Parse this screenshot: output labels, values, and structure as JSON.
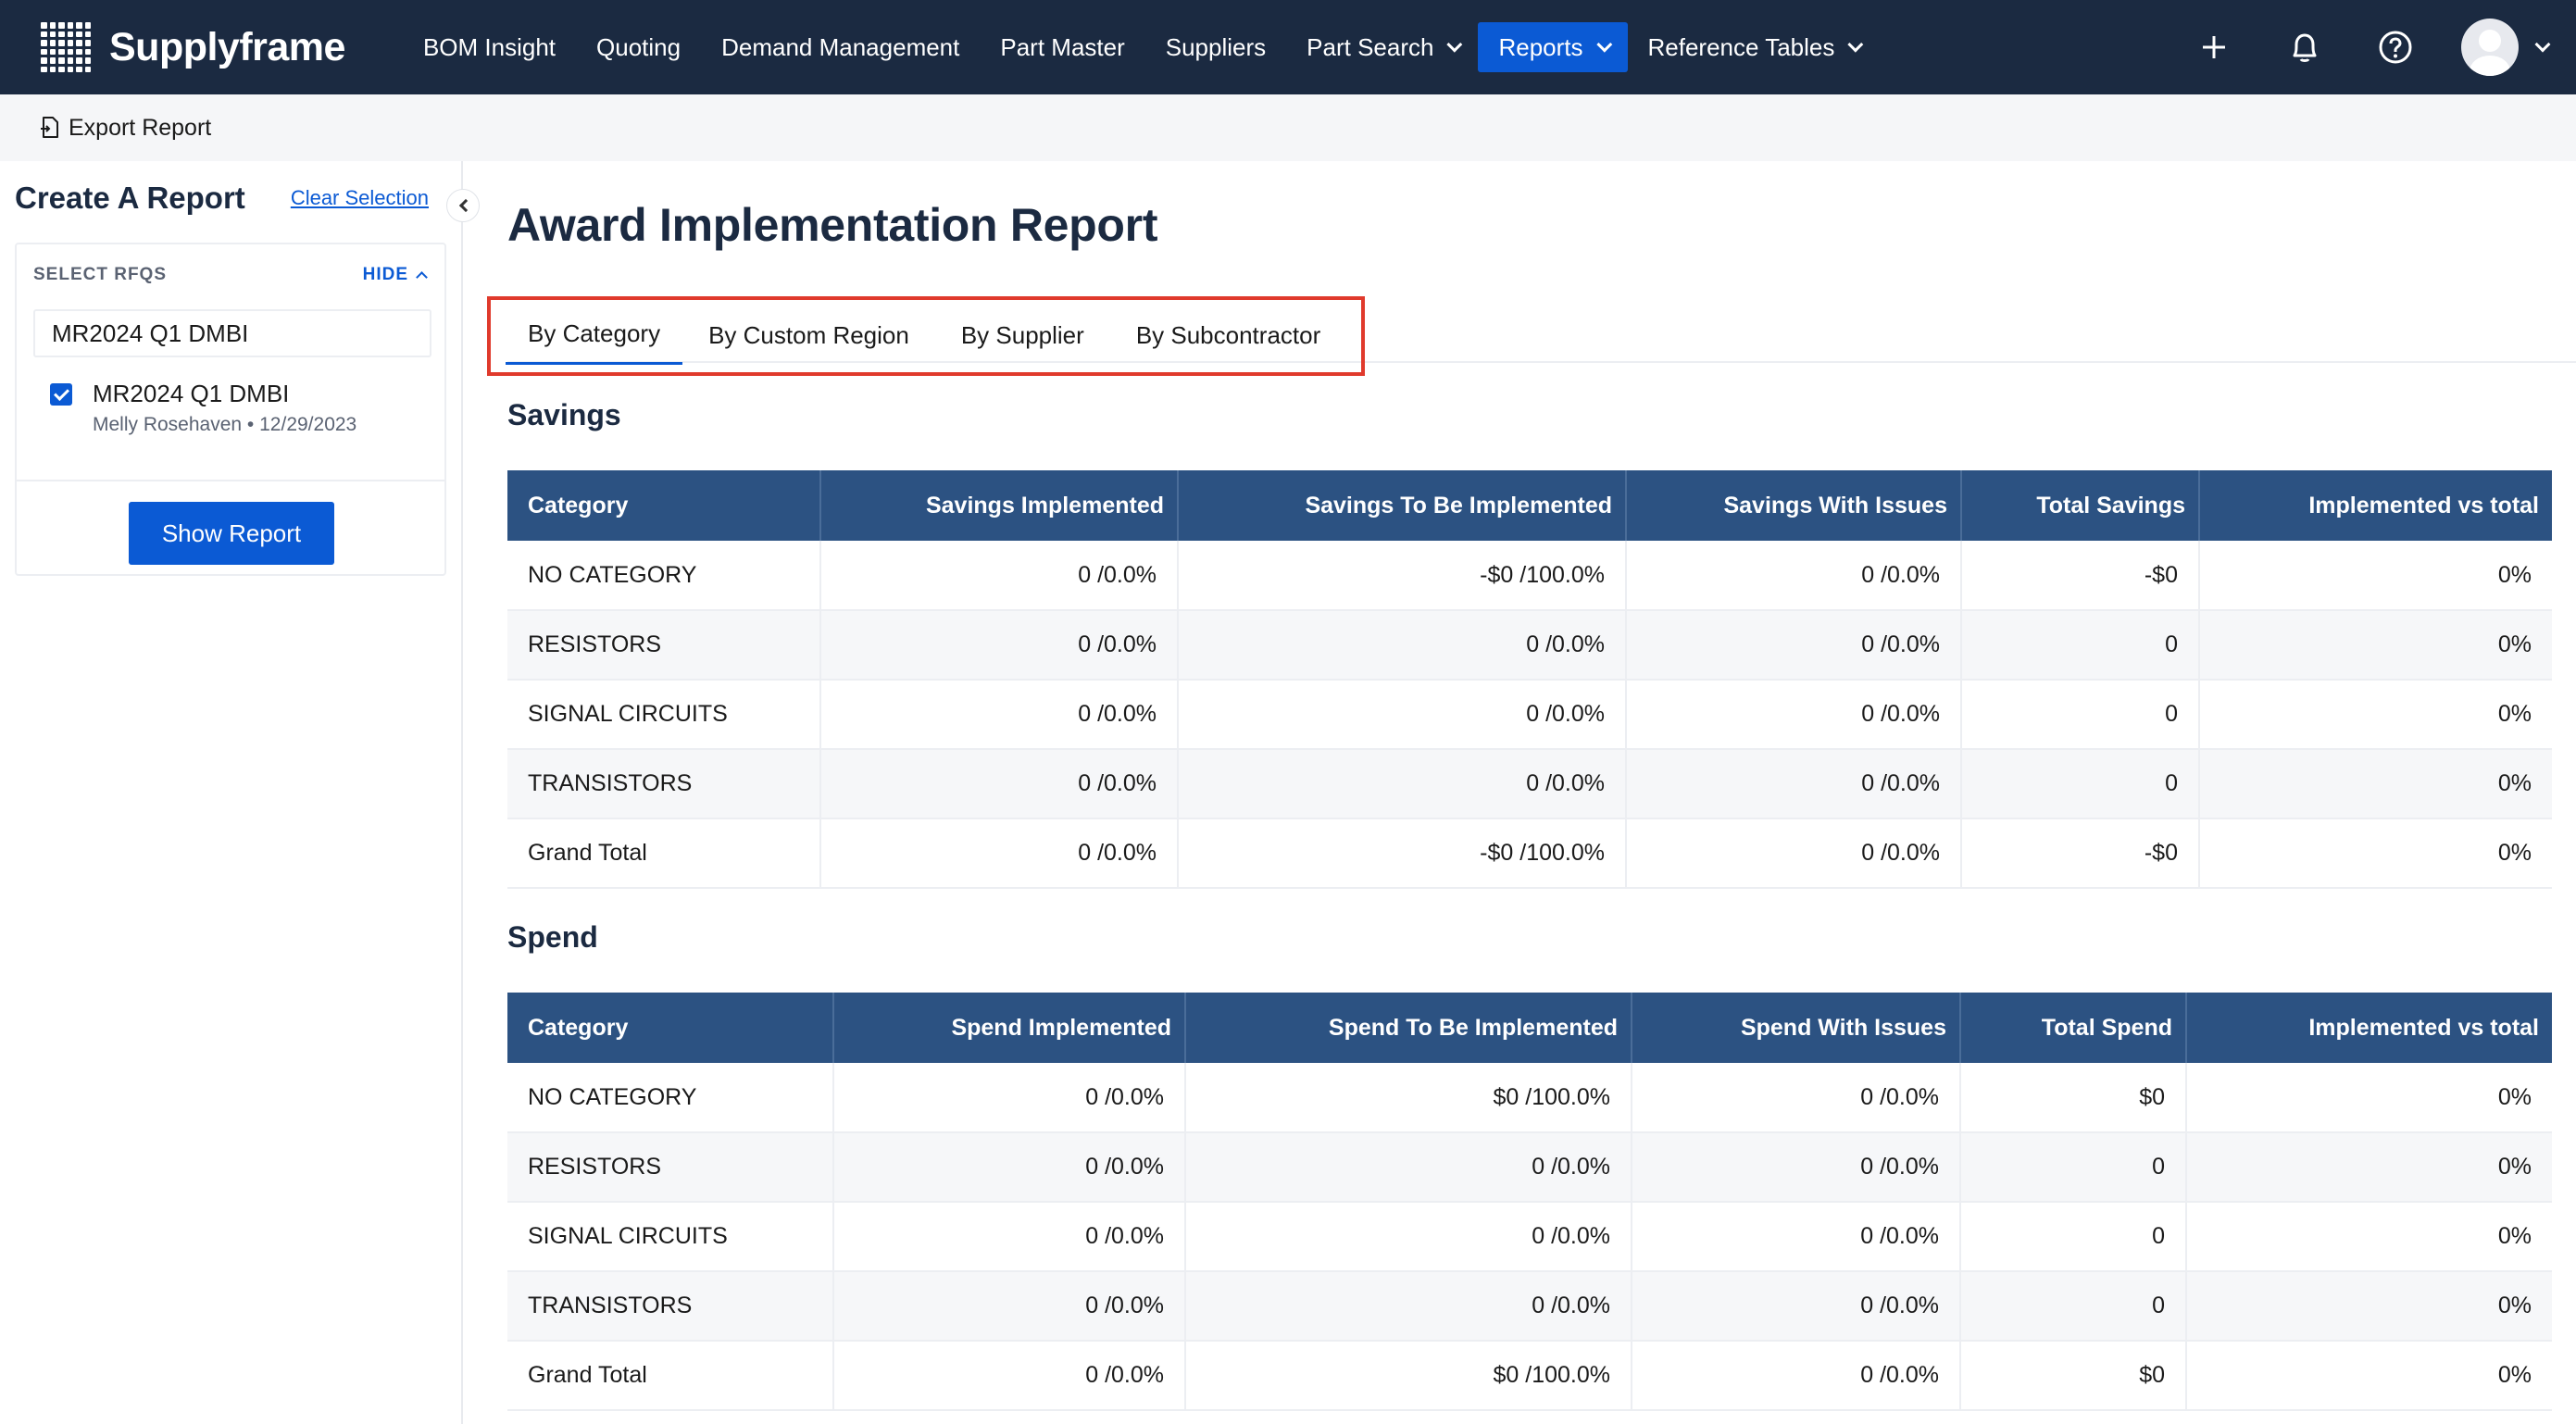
{
  "app": {
    "brand": "Supplyframe"
  },
  "nav": {
    "items": [
      {
        "label": "BOM Insight",
        "dropdown": false,
        "active": false
      },
      {
        "label": "Quoting",
        "dropdown": false,
        "active": false
      },
      {
        "label": "Demand Management",
        "dropdown": false,
        "active": false
      },
      {
        "label": "Part Master",
        "dropdown": false,
        "active": false
      },
      {
        "label": "Suppliers",
        "dropdown": false,
        "active": false
      },
      {
        "label": "Part Search",
        "dropdown": true,
        "active": false
      },
      {
        "label": "Reports",
        "dropdown": true,
        "active": true
      },
      {
        "label": "Reference Tables",
        "dropdown": true,
        "active": false
      }
    ],
    "right_icons": [
      "plus-icon",
      "bell-icon",
      "help-icon"
    ]
  },
  "toolbar": {
    "export_label": "Export Report"
  },
  "sidebar": {
    "title": "Create A Report",
    "clear_label": "Clear Selection",
    "select_label": "SELECT RFQS",
    "hide_label": "HIDE",
    "search_value": "MR2024 Q1 DMBI",
    "rfq": {
      "title": "MR2024 Q1 DMBI",
      "owner": "Melly Rosehaven",
      "date": "12/29/2023",
      "checked": true
    },
    "show_button": "Show Report"
  },
  "main": {
    "title": "Award Implementation Report",
    "tabs": [
      {
        "label": "By Category",
        "active": true
      },
      {
        "label": "By Custom Region",
        "active": false
      },
      {
        "label": "By Supplier",
        "active": false
      },
      {
        "label": "By Subcontractor",
        "active": false
      }
    ],
    "highlight_color": "#e03a2c",
    "savings": {
      "title": "Savings",
      "columns": [
        "Category",
        "Savings Implemented",
        "Savings To Be Implemented",
        "Savings With Issues",
        "Total Savings",
        "Implemented vs total"
      ],
      "rows": [
        [
          "NO CATEGORY",
          "0 /0.0%",
          "-$0 /100.0%",
          "0 /0.0%",
          "-$0",
          "0%"
        ],
        [
          "RESISTORS",
          "0 /0.0%",
          "0 /0.0%",
          "0 /0.0%",
          "0",
          "0%"
        ],
        [
          "SIGNAL CIRCUITS",
          "0 /0.0%",
          "0 /0.0%",
          "0 /0.0%",
          "0",
          "0%"
        ],
        [
          "TRANSISTORS",
          "0 /0.0%",
          "0 /0.0%",
          "0 /0.0%",
          "0",
          "0%"
        ],
        [
          "Grand Total",
          "0 /0.0%",
          "-$0 /100.0%",
          "0 /0.0%",
          "-$0",
          "0%"
        ]
      ]
    },
    "spend": {
      "title": "Spend",
      "columns": [
        "Category",
        "Spend Implemented",
        "Spend To Be Implemented",
        "Spend With Issues",
        "Total Spend",
        "Implemented vs total"
      ],
      "rows": [
        [
          "NO CATEGORY",
          "0 /0.0%",
          "$0 /100.0%",
          "0 /0.0%",
          "$0",
          "0%"
        ],
        [
          "RESISTORS",
          "0 /0.0%",
          "0 /0.0%",
          "0 /0.0%",
          "0",
          "0%"
        ],
        [
          "SIGNAL CIRCUITS",
          "0 /0.0%",
          "0 /0.0%",
          "0 /0.0%",
          "0",
          "0%"
        ],
        [
          "TRANSISTORS",
          "0 /0.0%",
          "0 /0.0%",
          "0 /0.0%",
          "0",
          "0%"
        ],
        [
          "Grand Total",
          "0 /0.0%",
          "$0 /100.0%",
          "0 /0.0%",
          "$0",
          "0%"
        ]
      ]
    }
  },
  "colors": {
    "nav_bg": "#1b2a41",
    "accent": "#0b5ad4",
    "table_header": "#2c5282"
  }
}
